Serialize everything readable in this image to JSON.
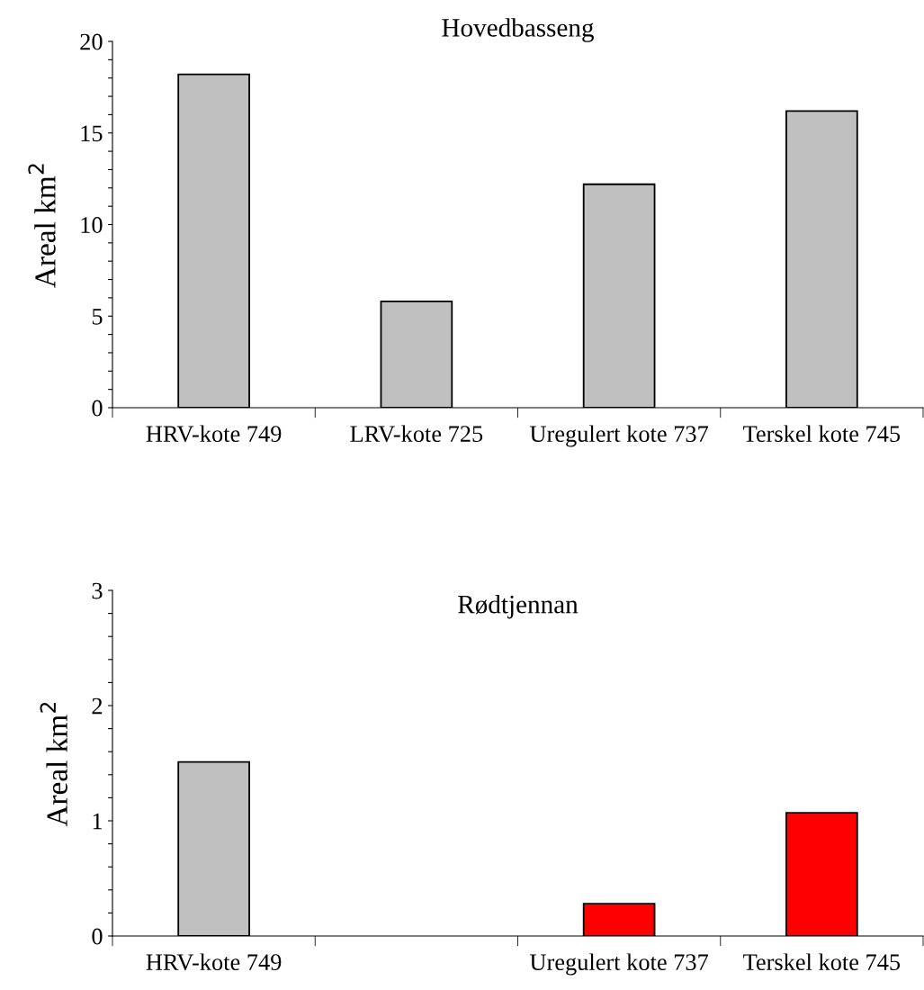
{
  "chart_data": [
    {
      "type": "bar",
      "title": "Hovedbasseng",
      "ylabel": "Areal km$^{2}$",
      "categories": [
        "HRV-kote 749",
        "LRV-kote 725",
        "Uregulert kote 737",
        "Terskel kote 745"
      ],
      "values": [
        18.2,
        5.8,
        12.2,
        16.2
      ],
      "colors": [
        "#c0c0c0",
        "#c0c0c0",
        "#c0c0c0",
        "#c0c0c0"
      ],
      "ylim": [
        0,
        20
      ],
      "yticks": [
        0,
        {
          "value": 1,
          "label": null
        },
        {
          "value": 2,
          "label": null
        },
        {
          "value": 3,
          "label": null
        },
        {
          "value": 4,
          "label": null
        },
        5,
        {
          "value": 6,
          "label": null
        },
        {
          "value": 7,
          "label": null
        },
        {
          "value": 8,
          "label": null
        },
        {
          "value": 9,
          "label": null
        },
        10,
        {
          "value": 11,
          "label": null
        },
        {
          "value": 12,
          "label": null
        },
        {
          "value": 13,
          "label": null
        },
        {
          "value": 14,
          "label": null
        },
        15,
        {
          "value": 16,
          "label": null
        },
        {
          "value": 17,
          "label": null
        },
        {
          "value": 18,
          "label": null
        },
        {
          "value": 19,
          "label": null
        },
        20
      ],
      "grid": false,
      "legend": false
    },
    {
      "type": "bar",
      "title": "Rødtjennan",
      "ylabel": "Areal km$^{2}$",
      "categories": [
        "HRV-kote 749",
        null,
        "Uregulert kote 737",
        "Terskel kote 745"
      ],
      "values": [
        1.51,
        null,
        0.28,
        1.07
      ],
      "colors": [
        "#c0c0c0",
        "#c0c0c0",
        "#ff0000",
        "#ff0000"
      ],
      "ylim": [
        0,
        3
      ],
      "yticks": [
        0,
        {
          "value": 0.2,
          "label": null
        },
        {
          "value": 0.4,
          "label": null
        },
        {
          "value": 0.6,
          "label": null
        },
        {
          "value": 0.8,
          "label": null
        },
        1,
        {
          "value": 1.2,
          "label": null
        },
        {
          "value": 1.4,
          "label": null
        },
        {
          "value": 1.6,
          "label": null
        },
        {
          "value": 1.8,
          "label": null
        },
        2,
        {
          "value": 2.2,
          "label": null
        },
        {
          "value": 2.4,
          "label": null
        },
        {
          "value": 2.6,
          "label": null
        },
        {
          "value": 2.8,
          "label": null
        },
        3
      ],
      "grid": false,
      "legend": false
    }
  ]
}
